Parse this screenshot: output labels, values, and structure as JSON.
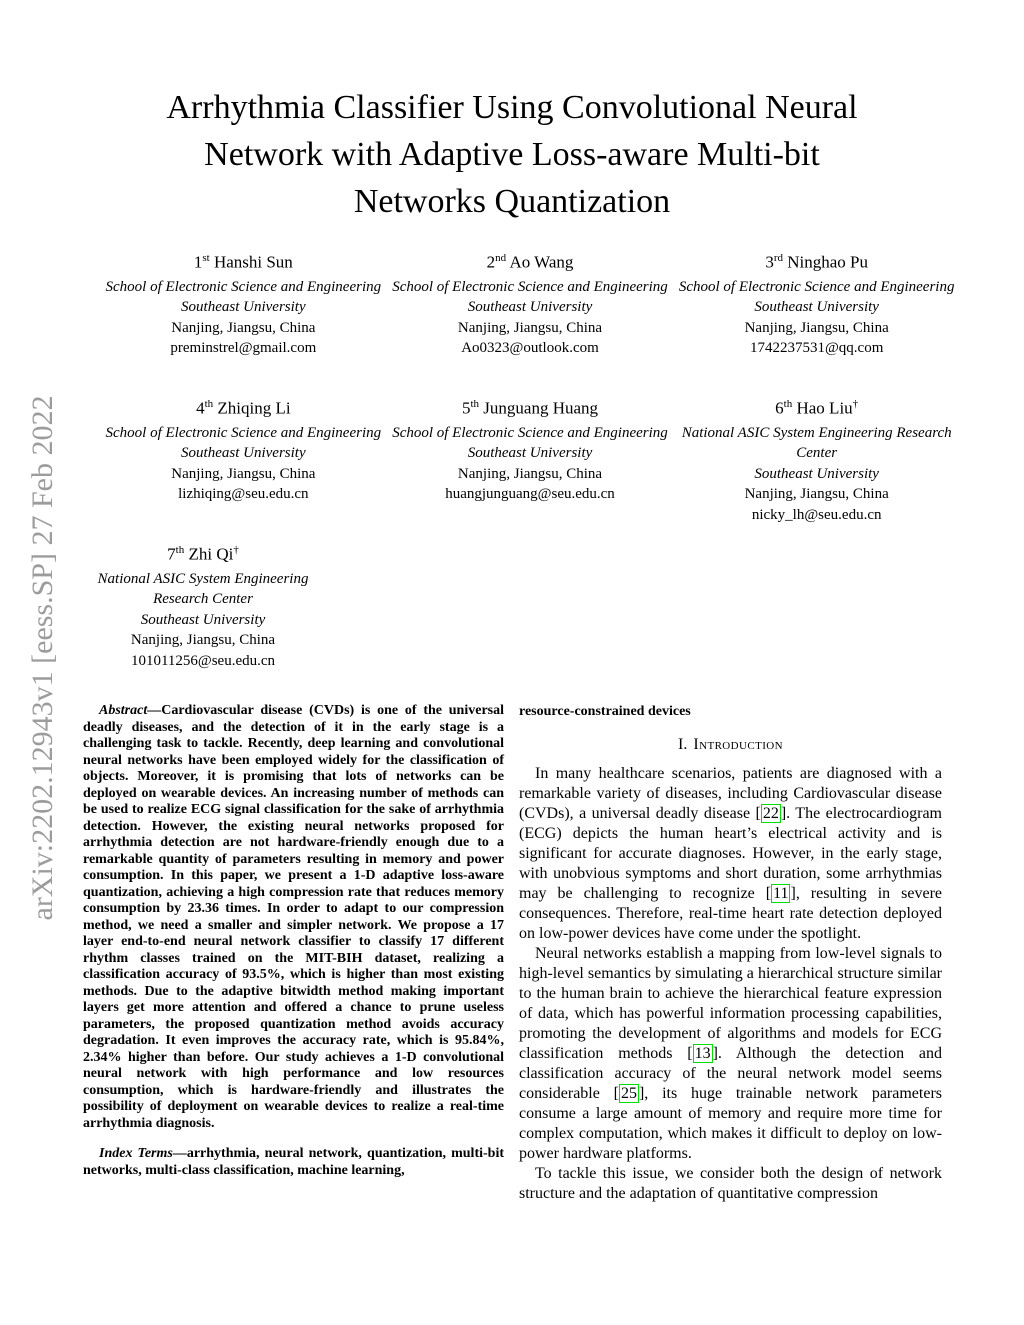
{
  "arxiv_watermark": "arXiv:2202.12943v1 [eess.SP] 27 Feb 2022",
  "title": {
    "lines": [
      "Arrhythmia Classifier Using Convolutional Neural",
      "Network with Adaptive Loss-aware Multi-bit",
      "Networks Quantization"
    ]
  },
  "authors": [
    {
      "ordinal": "1",
      "suffix": "st",
      "name": "Hanshi Sun",
      "dagger": "",
      "affiliation": "School of Electronic Science and Engineering",
      "university": "Southeast University",
      "location": "Nanjing, Jiangsu, China",
      "email": "preminstrel@gmail.com"
    },
    {
      "ordinal": "2",
      "suffix": "nd",
      "name": "Ao Wang",
      "dagger": "",
      "affiliation": "School of Electronic Science and Engineering",
      "university": "Southeast University",
      "location": "Nanjing, Jiangsu, China",
      "email": "Ao0323@outlook.com"
    },
    {
      "ordinal": "3",
      "suffix": "rd",
      "name": "Ninghao Pu",
      "dagger": "",
      "affiliation": "School of Electronic Science and Engineering",
      "university": "Southeast University",
      "location": "Nanjing, Jiangsu, China",
      "email": "1742237531@qq.com"
    },
    {
      "ordinal": "4",
      "suffix": "th",
      "name": "Zhiqing Li",
      "dagger": "",
      "affiliation": "School of Electronic Science and Engineering",
      "university": "Southeast University",
      "location": "Nanjing, Jiangsu, China",
      "email": "lizhiqing@seu.edu.cn"
    },
    {
      "ordinal": "5",
      "suffix": "th",
      "name": "Junguang Huang",
      "dagger": "",
      "affiliation": "School of Electronic Science and Engineering",
      "university": "Southeast University",
      "location": "Nanjing, Jiangsu, China",
      "email": "huangjunguang@seu.edu.cn"
    },
    {
      "ordinal": "6",
      "suffix": "th",
      "name": "Hao Liu",
      "dagger": "†",
      "affiliation": "National ASIC System Engineering Research Center",
      "university": "Southeast University",
      "location": "Nanjing, Jiangsu, China",
      "email": "nicky_lh@seu.edu.cn"
    },
    {
      "ordinal": "7",
      "suffix": "th",
      "name": "Zhi Qi",
      "dagger": "†",
      "affiliation": "National ASIC System Engineering Research Center",
      "university": "Southeast University",
      "location": "Nanjing, Jiangsu, China",
      "email": "101011256@seu.edu.cn"
    }
  ],
  "abstract": {
    "label": "Abstract—",
    "text": "Cardiovascular disease (CVDs) is one of the universal deadly diseases, and the detection of it in the early stage is a challenging task to tackle. Recently, deep learning and convolutional neural networks have been employed widely for the classification of objects. Moreover, it is promising that lots of networks can be deployed on wearable devices. An increasing number of methods can be used to realize ECG signal classification for the sake of arrhythmia detection. However, the existing neural networks proposed for arrhythmia detection are not hardware-friendly enough due to a remarkable quantity of parameters resulting in memory and power consumption. In this paper, we present a 1-D adaptive loss-aware quantization, achieving a high compression rate that reduces memory consumption by 23.36 times. In order to adapt to our compression method, we need a smaller and simpler network. We propose a 17 layer end-to-end neural network classifier to classify 17 different rhythm classes trained on the MIT-BIH dataset, realizing a classification accuracy of 93.5%, which is higher than most existing methods. Due to the adaptive bitwidth method making important layers get more attention and offered a chance to prune useless parameters, the proposed quantization method avoids accuracy degradation. It even improves the accuracy rate, which is 95.84%, 2.34% higher than before. Our study achieves a 1-D convolutional neural network with high performance and low resources consumption, which is hardware-friendly and illustrates the possibility of deployment on wearable devices to realize a real-time arrhythmia diagnosis."
  },
  "index_terms": {
    "label": "Index Terms—",
    "text": "arrhythmia, neural network, quantization, multi-bit networks, multi-class classification, machine learning,"
  },
  "punct": {
    "open_bracket": "[",
    "close_bracket": "]"
  },
  "introduction": {
    "continuation_text": "resource-constrained devices",
    "heading_number": "I.",
    "heading_label": "Introduction",
    "paragraphs": [
      {
        "s1": "In many healthcare scenarios, patients are diagnosed with a remarkable variety of diseases, including Cardiovascular disease (CVDs), a universal deadly disease ",
        "c1": "22",
        "s2": ". The electrocardiogram (ECG) depicts the human heart’s electrical activity and is significant for accurate diagnoses. However, in the early stage, with unobvious symptoms and short duration, some arrhythmias may be challenging to recognize ",
        "c2": "11",
        "s3": ", resulting in severe consequences. Therefore, real-time heart rate detection deployed on low-power devices have come under the spotlight."
      },
      {
        "s1": "Neural networks establish a mapping from low-level signals to high-level semantics by simulating a hierarchical structure similar to the human brain to achieve the hierarchical feature expression of data, which has powerful information processing capabilities, promoting the development of algorithms and models for ECG classification methods ",
        "c1": "13",
        "s2": ". Although the detection and classification accuracy of the neural network model seems considerable ",
        "c2": "25",
        "s3": ", its huge trainable network parameters consume a large amount of memory and require more time for complex computation, which makes it difficult to deploy on low-power hardware platforms."
      },
      {
        "s1": "To tackle this issue, we consider both the design of network structure and the adaptation of quantitative compression"
      }
    ]
  },
  "colors": {
    "citation_border_green": "#00dd00",
    "watermark_gray": "#9c9c9c"
  }
}
